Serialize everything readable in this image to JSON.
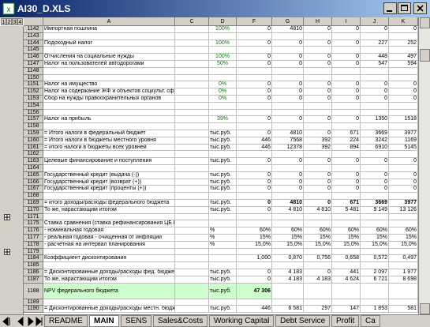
{
  "window": {
    "title": "AI30_D.XLS"
  },
  "outline_levels": [
    "1",
    "2",
    "3",
    "4"
  ],
  "columns": [
    "A",
    "C",
    "D",
    "F",
    "G",
    "H",
    "I",
    "J",
    "K"
  ],
  "rows": [
    {
      "n": "1142",
      "a": "Импортная пошлина",
      "d": "100%",
      "v": [
        "0",
        "4810",
        "0",
        "0",
        "0",
        "0"
      ]
    },
    {
      "n": "1143"
    },
    {
      "n": "1144",
      "a": "Подоходный налог",
      "d": "100%",
      "v": [
        "0",
        "0",
        "0",
        "0",
        "227",
        "252"
      ]
    },
    {
      "n": "1145"
    },
    {
      "n": "1146",
      "a": "Отчисления на социальные нужды",
      "d": "100%",
      "v": [
        "0",
        "0",
        "0",
        "0",
        "448",
        "497"
      ]
    },
    {
      "n": "1147",
      "a": "Налог на пользователей автодорогами",
      "d": "50%",
      "v": [
        "0",
        "0",
        "0",
        "0",
        "547",
        "594"
      ]
    },
    {
      "n": "1148"
    },
    {
      "n": "1150"
    },
    {
      "n": "1151",
      "a": "Налог на имущество",
      "d": "0%",
      "v": [
        "0",
        "0",
        "0",
        "0",
        "0",
        "0"
      ]
    },
    {
      "n": "1152",
      "a": "Налог на содержание ЖФ и объектов соцкульт. сферы",
      "d": "0%",
      "v": [
        "0",
        "0",
        "0",
        "0",
        "0",
        "0"
      ]
    },
    {
      "n": "1153",
      "a": "Сбор на нужды правоохранительных органов",
      "d": "0%",
      "v": [
        "0",
        "0",
        "0",
        "0",
        "0",
        "0"
      ]
    },
    {
      "n": "1154"
    },
    {
      "n": "1156"
    },
    {
      "n": "1157",
      "a": "Налог на прибыль",
      "d": "39%",
      "v": [
        "0",
        "0",
        "0",
        "0",
        "1350",
        "1518"
      ]
    },
    {
      "n": "1158"
    },
    {
      "n": "1159",
      "a": " = Итого налоги в федеральный бюджет",
      "d": "тыс.руб.",
      "v": [
        "0",
        "4810",
        "0",
        "671",
        "3669",
        "3977"
      ]
    },
    {
      "n": "1160",
      "a": " = Итого налоги в бюджеты местного уровня",
      "d": "тыс.руб.",
      "v": [
        "446",
        "7568",
        "392",
        "224",
        "3242",
        "1169"
      ]
    },
    {
      "n": "1161",
      "a": " = итого налоги в бюджеты всех уровней",
      "d": "тыс.руб.",
      "v": [
        "446",
        "12378",
        "392",
        "894",
        "6910",
        "5145"
      ]
    },
    {
      "n": "1162"
    },
    {
      "n": "1163",
      "a": "Целевые финансирование и поступления",
      "d": "тыс.руб.",
      "v": [
        "0",
        "0",
        "0",
        "0",
        "0",
        "0"
      ]
    },
    {
      "n": "1164"
    },
    {
      "n": "1165",
      "a": "Государственный кредит (выдача (-))",
      "d": "тыс.руб.",
      "v": [
        "0",
        "0",
        "0",
        "0",
        "0",
        "0"
      ]
    },
    {
      "n": "1166",
      "a": "Государственный кредит (возврат (+))",
      "d": "тыс.руб.",
      "v": [
        "0",
        "0",
        "0",
        "0",
        "0",
        "0"
      ]
    },
    {
      "n": "1167",
      "a": "Государственный кредит (проценты (+))",
      "d": "тыс.руб.",
      "v": [
        "0",
        "0",
        "0",
        "0",
        "0",
        "0"
      ]
    },
    {
      "n": "1168"
    },
    {
      "n": "1169",
      "a": " = итого доходы/расходы федерального бюджета",
      "d": "тыс.руб.",
      "v": [
        "0",
        "4810",
        "0",
        "671",
        "3669",
        "3977"
      ]
    },
    {
      "n": "1170",
      "a": "То же, нарастающим итогом",
      "d": "тыс.руб.",
      "v": [
        "0",
        "4 810",
        "4 810",
        "5 481",
        "9 149",
        "13 126"
      ]
    },
    {
      "n": "1171"
    },
    {
      "n": "1175",
      "a": "Ставка сравнения (ставка рефинансирования ЦБ РФ)"
    },
    {
      "n": "1176",
      "a": " - номинальная годовая",
      "d": "%",
      "v": [
        "60%",
        "60%",
        "60%",
        "60%",
        "60%",
        "60%"
      ]
    },
    {
      "n": "1177",
      "a": " - реальная годовая - очищенная от инфляции",
      "d": "%",
      "v": [
        "15%",
        "15%",
        "15%",
        "15%",
        "15%",
        "15%"
      ]
    },
    {
      "n": "1178",
      "a": " - расчетная на интервал планирования",
      "d": "%",
      "v": [
        "15,0%",
        "15,0%",
        "15,0%",
        "15,0%",
        "15,0%",
        "15,0%"
      ]
    },
    {
      "n": "1179"
    },
    {
      "n": "1184",
      "a": "Коэффициент дисконтирования",
      "v": [
        "1,000",
        "0,870",
        "0,756",
        "0,658",
        "0,572",
        "0,497"
      ]
    },
    {
      "n": "1185"
    },
    {
      "n": "1186",
      "a": " = Дисконтированные доходы/расходы фед. бюджета",
      "d": "тыс.руб.",
      "v": [
        "0",
        "4 183",
        "0",
        "441",
        "2 097",
        "1 977"
      ]
    },
    {
      "n": "1187",
      "a": "То же, нарастающим итогом",
      "d": "тыс.руб.",
      "v": [
        "0",
        "4 183",
        "4 183",
        "4 624",
        "6 721",
        "8 698"
      ]
    },
    {
      "n": "1188",
      "a": "NPV  федерального бюджета",
      "d": "тыс.руб.",
      "v": [
        "47 306"
      ]
    },
    {
      "n": "1189"
    },
    {
      "n": "1190",
      "a": " = Дисконтированные доходы/расходы местн. бюджета",
      "d": "тыс.руб.",
      "v": [
        "446",
        "6 581",
        "297",
        "147",
        "1 853",
        "581"
      ]
    }
  ],
  "tabs": [
    "README",
    "MAIN",
    "SENS",
    "Sales&Costs",
    "Working Capital",
    "Debt Service",
    "Profit",
    "Ca"
  ]
}
